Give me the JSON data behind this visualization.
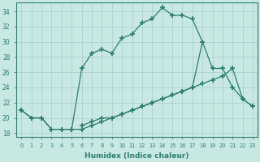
{
  "line1_x": [
    0,
    1,
    2,
    3,
    4,
    5,
    6,
    7,
    8,
    9,
    10,
    11,
    12,
    13,
    14,
    15,
    16,
    17,
    18,
    19,
    20,
    21,
    22,
    23
  ],
  "line1_y": [
    21.0,
    20.0,
    20.0,
    18.5,
    18.5,
    18.5,
    18.5,
    19.0,
    19.5,
    20.0,
    20.5,
    21.0,
    21.5,
    22.0,
    22.5,
    23.0,
    23.5,
    24.0,
    24.5,
    25.0,
    25.5,
    26.5,
    22.5,
    21.5
  ],
  "line2_x": [
    0,
    1,
    2,
    3,
    4,
    5,
    6,
    7,
    8,
    9,
    10,
    11,
    12,
    13,
    14,
    15,
    16,
    17,
    18
  ],
  "line2_y": [
    21.0,
    20.0,
    20.0,
    18.5,
    18.5,
    18.5,
    26.5,
    28.5,
    29.0,
    28.5,
    30.5,
    31.0,
    32.5,
    33.0,
    34.5,
    33.5,
    33.5,
    33.0,
    30.0
  ],
  "line3_x": [
    6,
    7,
    8,
    9,
    10,
    11,
    12,
    13,
    14,
    15,
    16,
    17,
    18,
    19,
    20,
    21,
    22,
    23
  ],
  "line3_y": [
    19.0,
    19.5,
    20.0,
    20.0,
    20.5,
    21.0,
    21.5,
    22.0,
    22.5,
    23.0,
    23.5,
    24.0,
    30.0,
    26.5,
    26.5,
    24.0,
    22.5,
    21.5
  ],
  "color": "#2e7d6e",
  "bg_color": "#c8e8e4",
  "grid_color": "#a8cccc",
  "xlabel": "Humidex (Indice chaleur)",
  "xlim": [
    -0.5,
    23.5
  ],
  "ylim": [
    17.5,
    35.2
  ],
  "yticks": [
    18,
    20,
    22,
    24,
    26,
    28,
    30,
    32,
    34
  ],
  "xticks": [
    0,
    1,
    2,
    3,
    4,
    5,
    6,
    7,
    8,
    9,
    10,
    11,
    12,
    13,
    14,
    15,
    16,
    17,
    18,
    19,
    20,
    21,
    22,
    23
  ]
}
